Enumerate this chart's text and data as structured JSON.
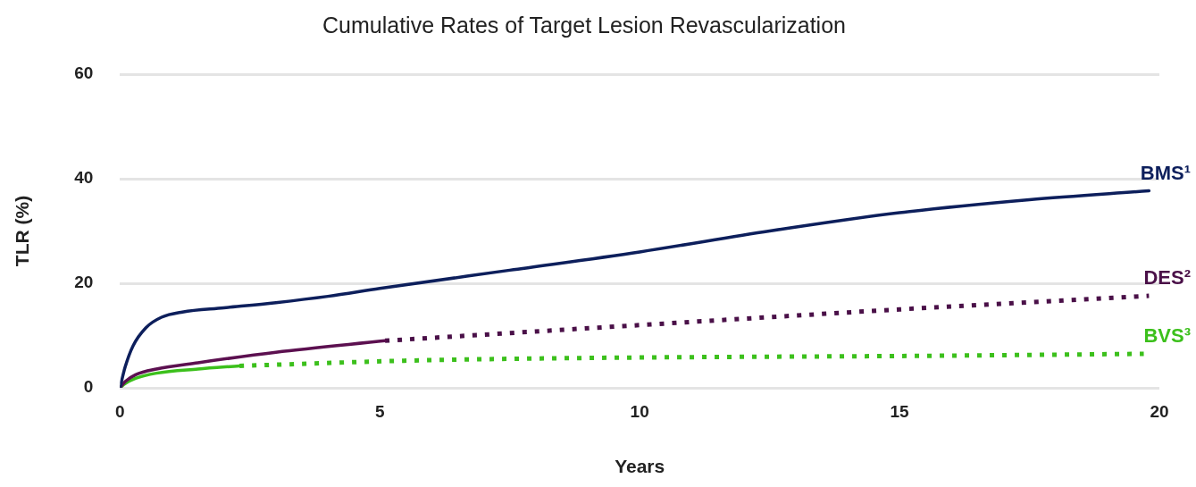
{
  "chart_data": {
    "type": "line",
    "title": "Cumulative Rates of Target Lesion Revascularization",
    "xlabel": "Years",
    "ylabel": "TLR (%)",
    "xlim": [
      0,
      20
    ],
    "xticks": [
      0,
      5,
      10,
      15,
      20
    ],
    "ylim": [
      0,
      60
    ],
    "yticks": [
      0,
      20,
      40,
      60
    ],
    "grid": "y",
    "legend": false,
    "marker": "none",
    "series": [
      {
        "name": "BMS¹",
        "color": "#0d1f5c",
        "line_style": "solid",
        "x": [
          0,
          0.1,
          0.25,
          0.5,
          0.8,
          1.2,
          2,
          3,
          4,
          5,
          7.5,
          10,
          12.5,
          15,
          17.5,
          19.8
        ],
        "values": [
          0,
          4,
          8,
          11.5,
          13.5,
          14.5,
          15.3,
          16.3,
          17.5,
          19,
          22.5,
          26,
          30,
          33.5,
          36,
          37.7
        ]
      },
      {
        "color": "#5c1050",
        "line_style": "solid",
        "x": [
          0,
          0.1,
          0.3,
          0.7,
          1.5,
          3,
          5.1
        ],
        "values": [
          0,
          1.2,
          2.5,
          3.6,
          4.8,
          6.8,
          9
        ]
      },
      {
        "name": "DES²",
        "color": "#4a1048",
        "line_style": "dotted",
        "x": [
          5.1,
          10,
          15,
          19.8
        ],
        "values": [
          9,
          12,
          15,
          17.6
        ]
      },
      {
        "color": "#3cc01c",
        "line_style": "solid",
        "x": [
          0,
          0.1,
          0.3,
          0.7,
          1.5,
          2.3
        ],
        "values": [
          0,
          0.8,
          1.8,
          2.8,
          3.6,
          4.2
        ]
      },
      {
        "name": "BVS³",
        "color": "#3cc01c",
        "line_style": "dotted",
        "x": [
          2.3,
          6,
          16.5,
          19.7
        ],
        "values": [
          4.2,
          5.3,
          6.2,
          6.5
        ]
      }
    ]
  }
}
